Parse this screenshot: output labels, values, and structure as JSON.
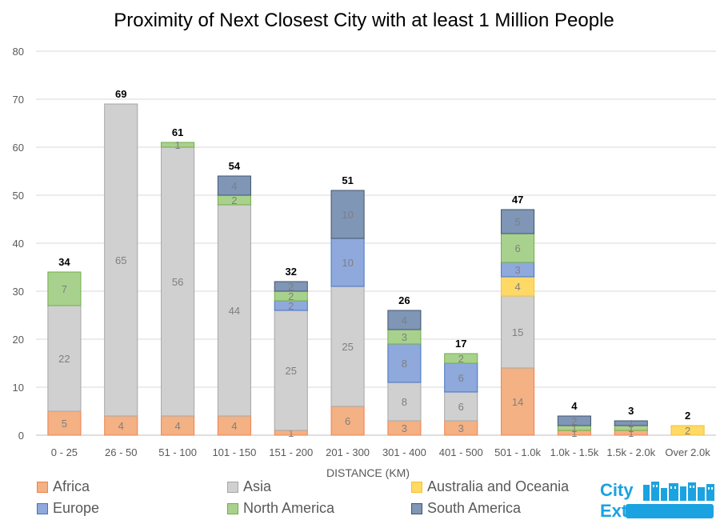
{
  "chart_data": {
    "type": "bar",
    "stacked": true,
    "title": "Proximity of Next Closest  City with at least 1 Million People",
    "xlabel": "DISTANCE (KM)",
    "ylabel": "",
    "ylim": [
      0,
      80
    ],
    "yticks": [
      "0",
      "10",
      "20",
      "30",
      "40",
      "50",
      "60",
      "70",
      "80"
    ],
    "grid": true,
    "legend_position": "bottom",
    "categories": [
      "0 - 25",
      "26 - 50",
      "51 - 100",
      "101 - 150",
      "151 - 200",
      "201 - 300",
      "301 - 400",
      "401 - 500",
      "501 - 1.0k",
      "1.0k - 1.5k",
      "1.5k - 2.0k",
      "Over 2.0k"
    ],
    "totals": [
      34,
      69,
      61,
      54,
      32,
      51,
      26,
      17,
      47,
      4,
      3,
      2
    ],
    "series": [
      {
        "name": "Africa",
        "color": "#f4b183",
        "border": "#f08050",
        "values": [
          5,
          4,
          4,
          4,
          1,
          6,
          3,
          3,
          14,
          1,
          1,
          0
        ]
      },
      {
        "name": "Asia",
        "color": "#d0d0d0",
        "border": "#a6a6a6",
        "values": [
          22,
          65,
          56,
          44,
          25,
          25,
          8,
          6,
          15,
          0,
          0,
          0
        ]
      },
      {
        "name": "Australia and Oceania",
        "color": "#ffd966",
        "border": "#f2c12e",
        "values": [
          0,
          0,
          0,
          0,
          0,
          0,
          0,
          0,
          4,
          0,
          0,
          2
        ]
      },
      {
        "name": "Europe",
        "color": "#8fa9dc",
        "border": "#4472c4",
        "values": [
          0,
          0,
          0,
          0,
          2,
          10,
          8,
          6,
          3,
          0,
          0,
          0
        ]
      },
      {
        "name": "North America",
        "color": "#a9d18e",
        "border": "#70ad47",
        "values": [
          7,
          0,
          1,
          2,
          2,
          0,
          3,
          2,
          6,
          1,
          1,
          0
        ]
      },
      {
        "name": "South America",
        "color": "#7f96b6",
        "border": "#44546a",
        "values": [
          0,
          0,
          0,
          4,
          2,
          10,
          4,
          0,
          5,
          2,
          1,
          0
        ]
      }
    ]
  },
  "logo": {
    "line1": "City",
    "line2": "Extremes"
  }
}
